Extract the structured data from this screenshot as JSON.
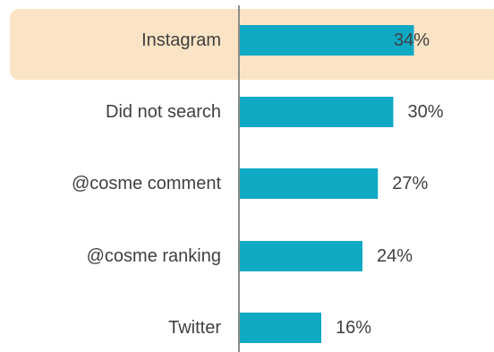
{
  "colors": {
    "bar": "#0fa9c4",
    "highlight_background": "#fbe4c5",
    "axis": "#8c8c8c",
    "text": "#404040"
  },
  "chart_data": {
    "type": "bar",
    "orientation": "horizontal",
    "categories": [
      "Instagram",
      "Did not search",
      "@cosme comment",
      "@cosme ranking",
      "Twitter"
    ],
    "values": [
      34,
      30,
      27,
      24,
      16
    ],
    "value_labels": [
      "34%",
      "30%",
      "27%",
      "24%",
      "16%"
    ],
    "highlighted_category": "Instagram",
    "unit": "%",
    "grid": false,
    "legend": "none"
  }
}
